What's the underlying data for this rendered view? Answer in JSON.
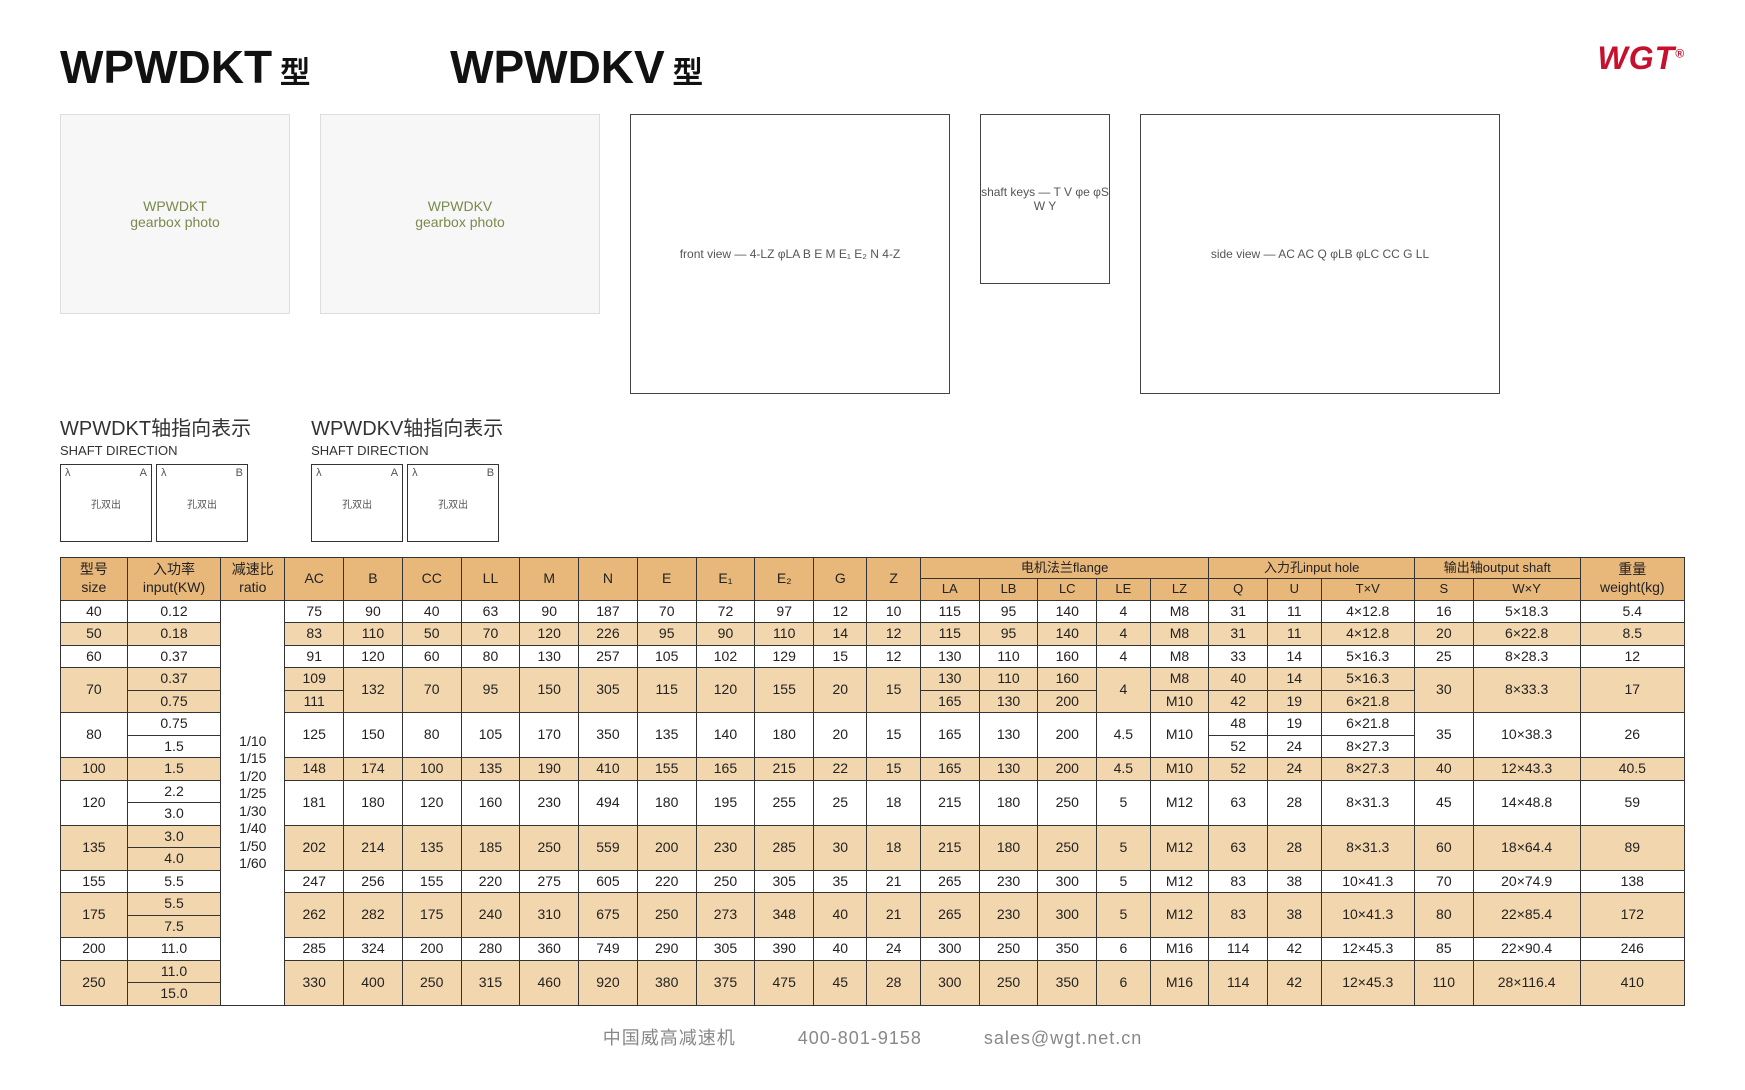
{
  "logo": "WGT",
  "logo_mark": "®",
  "titles": {
    "t1": "WPWDKT",
    "t1_suffix": "型",
    "t2": "WPWDKV",
    "t2_suffix": "型"
  },
  "shaft": {
    "label1": "WPWDKT轴指向表示",
    "sub1": "SHAFT DIRECTION",
    "label2": "WPWDKV轴指向表示",
    "sub2": "SHAFT DIRECTION",
    "A": "A",
    "B": "B",
    "lambda": "λ",
    "hole": "孔双出"
  },
  "diagram_labels": {
    "d1": "front view — 4-LZ φLA B E M E₁ E₂ N 4-Z",
    "d2": "shaft keys — T V φe φS W Y",
    "d3": "side view — AC AC Q φLB φLC CC G LL"
  },
  "table": {
    "head": {
      "size": "型号",
      "size_en": "size",
      "input": "入功率",
      "input_en": "input(KW)",
      "ratio": "减速比",
      "ratio_en": "ratio",
      "AC": "AC",
      "B": "B",
      "CC": "CC",
      "LL": "LL",
      "M": "M",
      "N": "N",
      "E": "E",
      "E1": "E₁",
      "E2": "E₂",
      "G": "G",
      "Z": "Z",
      "flange": "电机法兰flange",
      "LA": "LA",
      "LB": "LB",
      "LC": "LC",
      "LE": "LE",
      "LZ": "LZ",
      "inputhole": "入力孔input hole",
      "Q": "Q",
      "U": "U",
      "TxV": "T×V",
      "outputshaft": "输出轴output shaft",
      "S": "S",
      "WxY": "W×Y",
      "weight": "重量",
      "weight_en": "weight(kg)"
    },
    "ratios": "1/10\n1/15\n1/20\n1/25\n1/30\n1/40\n1/50\n1/60",
    "rows": [
      {
        "size": "40",
        "input": [
          "0.12"
        ],
        "AC": [
          "75"
        ],
        "B": "90",
        "CC": "40",
        "LL": "63",
        "M": "90",
        "N": "187",
        "E": "70",
        "E1": "72",
        "E2": "97",
        "G": "12",
        "Z": "10",
        "LA": [
          "115"
        ],
        "LB": [
          "95"
        ],
        "LC": [
          "140"
        ],
        "LE": "4",
        "LZ": [
          "M8"
        ],
        "Q": [
          "31"
        ],
        "U": [
          "11"
        ],
        "TxV": [
          "4×12.8"
        ],
        "S": "16",
        "WxY": "5×18.3",
        "wt": "5.4"
      },
      {
        "size": "50",
        "input": [
          "0.18"
        ],
        "AC": [
          "83"
        ],
        "B": "110",
        "CC": "50",
        "LL": "70",
        "M": "120",
        "N": "226",
        "E": "95",
        "E1": "90",
        "E2": "110",
        "G": "14",
        "Z": "12",
        "LA": [
          "115"
        ],
        "LB": [
          "95"
        ],
        "LC": [
          "140"
        ],
        "LE": "4",
        "LZ": [
          "M8"
        ],
        "Q": [
          "31"
        ],
        "U": [
          "11"
        ],
        "TxV": [
          "4×12.8"
        ],
        "S": "20",
        "WxY": "6×22.8",
        "wt": "8.5"
      },
      {
        "size": "60",
        "input": [
          "0.37"
        ],
        "AC": [
          "91"
        ],
        "B": "120",
        "CC": "60",
        "LL": "80",
        "M": "130",
        "N": "257",
        "E": "105",
        "E1": "102",
        "E2": "129",
        "G": "15",
        "Z": "12",
        "LA": [
          "130"
        ],
        "LB": [
          "110"
        ],
        "LC": [
          "160"
        ],
        "LE": "4",
        "LZ": [
          "M8"
        ],
        "Q": [
          "33"
        ],
        "U": [
          "14"
        ],
        "TxV": [
          "5×16.3"
        ],
        "S": "25",
        "WxY": "8×28.3",
        "wt": "12"
      },
      {
        "size": "70",
        "input": [
          "0.37",
          "0.75"
        ],
        "AC": [
          "109",
          "111"
        ],
        "B": "132",
        "CC": "70",
        "LL": "95",
        "M": "150",
        "N": "305",
        "E": "115",
        "E1": "120",
        "E2": "155",
        "G": "20",
        "Z": "15",
        "LA": [
          "130",
          "165"
        ],
        "LB": [
          "110",
          "130"
        ],
        "LC": [
          "160",
          "200"
        ],
        "LE": "4",
        "LZ": [
          "M8",
          "M10"
        ],
        "Q": [
          "40",
          "42"
        ],
        "U": [
          "14",
          "19"
        ],
        "TxV": [
          "5×16.3",
          "6×21.8"
        ],
        "S": "30",
        "WxY": "8×33.3",
        "wt": "17"
      },
      {
        "size": "80",
        "input": [
          "0.75",
          "1.5"
        ],
        "AC": [
          "125"
        ],
        "B": "150",
        "CC": "80",
        "LL": "105",
        "M": "170",
        "N": "350",
        "E": "135",
        "E1": "140",
        "E2": "180",
        "G": "20",
        "Z": "15",
        "LA": [
          "165"
        ],
        "LB": [
          "130"
        ],
        "LC": [
          "200"
        ],
        "LE": "4.5",
        "LZ": [
          "M10"
        ],
        "Q": [
          "48",
          "52"
        ],
        "U": [
          "19",
          "24"
        ],
        "TxV": [
          "6×21.8",
          "8×27.3"
        ],
        "S": "35",
        "WxY": "10×38.3",
        "wt": "26"
      },
      {
        "size": "100",
        "input": [
          "1.5"
        ],
        "AC": [
          "148"
        ],
        "B": "174",
        "CC": "100",
        "LL": "135",
        "M": "190",
        "N": "410",
        "E": "155",
        "E1": "165",
        "E2": "215",
        "G": "22",
        "Z": "15",
        "LA": [
          "165"
        ],
        "LB": [
          "130"
        ],
        "LC": [
          "200"
        ],
        "LE": "4.5",
        "LZ": [
          "M10"
        ],
        "Q": [
          "52"
        ],
        "U": [
          "24"
        ],
        "TxV": [
          "8×27.3"
        ],
        "S": "40",
        "WxY": "12×43.3",
        "wt": "40.5"
      },
      {
        "size": "120",
        "input": [
          "2.2",
          "3.0"
        ],
        "AC": [
          "181"
        ],
        "B": "180",
        "CC": "120",
        "LL": "160",
        "M": "230",
        "N": "494",
        "E": "180",
        "E1": "195",
        "E2": "255",
        "G": "25",
        "Z": "18",
        "LA": [
          "215"
        ],
        "LB": [
          "180"
        ],
        "LC": [
          "250"
        ],
        "LE": "5",
        "LZ": [
          "M12"
        ],
        "Q": [
          "63"
        ],
        "U": [
          "28"
        ],
        "TxV": [
          "8×31.3"
        ],
        "S": "45",
        "WxY": "14×48.8",
        "wt": "59"
      },
      {
        "size": "135",
        "input": [
          "3.0",
          "4.0"
        ],
        "AC": [
          "202"
        ],
        "B": "214",
        "CC": "135",
        "LL": "185",
        "M": "250",
        "N": "559",
        "E": "200",
        "E1": "230",
        "E2": "285",
        "G": "30",
        "Z": "18",
        "LA": [
          "215"
        ],
        "LB": [
          "180"
        ],
        "LC": [
          "250"
        ],
        "LE": "5",
        "LZ": [
          "M12"
        ],
        "Q": [
          "63"
        ],
        "U": [
          "28"
        ],
        "TxV": [
          "8×31.3"
        ],
        "S": "60",
        "WxY": "18×64.4",
        "wt": "89"
      },
      {
        "size": "155",
        "input": [
          "5.5"
        ],
        "AC": [
          "247"
        ],
        "B": "256",
        "CC": "155",
        "LL": "220",
        "M": "275",
        "N": "605",
        "E": "220",
        "E1": "250",
        "E2": "305",
        "G": "35",
        "Z": "21",
        "LA": [
          "265"
        ],
        "LB": [
          "230"
        ],
        "LC": [
          "300"
        ],
        "LE": "5",
        "LZ": [
          "M12"
        ],
        "Q": [
          "83"
        ],
        "U": [
          "38"
        ],
        "TxV": [
          "10×41.3"
        ],
        "S": "70",
        "WxY": "20×74.9",
        "wt": "138"
      },
      {
        "size": "175",
        "input": [
          "5.5",
          "7.5"
        ],
        "AC": [
          "262"
        ],
        "B": "282",
        "CC": "175",
        "LL": "240",
        "M": "310",
        "N": "675",
        "E": "250",
        "E1": "273",
        "E2": "348",
        "G": "40",
        "Z": "21",
        "LA": [
          "265"
        ],
        "LB": [
          "230"
        ],
        "LC": [
          "300"
        ],
        "LE": "5",
        "LZ": [
          "M12"
        ],
        "Q": [
          "83"
        ],
        "U": [
          "38"
        ],
        "TxV": [
          "10×41.3"
        ],
        "S": "80",
        "WxY": "22×85.4",
        "wt": "172"
      },
      {
        "size": "200",
        "input": [
          "11.0"
        ],
        "AC": [
          "285"
        ],
        "B": "324",
        "CC": "200",
        "LL": "280",
        "M": "360",
        "N": "749",
        "E": "290",
        "E1": "305",
        "E2": "390",
        "G": "40",
        "Z": "24",
        "LA": [
          "300"
        ],
        "LB": [
          "250"
        ],
        "LC": [
          "350"
        ],
        "LE": "6",
        "LZ": [
          "M16"
        ],
        "Q": [
          "114"
        ],
        "U": [
          "42"
        ],
        "TxV": [
          "12×45.3"
        ],
        "S": "85",
        "WxY": "22×90.4",
        "wt": "246"
      },
      {
        "size": "250",
        "input": [
          "11.0",
          "15.0"
        ],
        "AC": [
          "330"
        ],
        "B": "400",
        "CC": "250",
        "LL": "315",
        "M": "460",
        "N": "920",
        "E": "380",
        "E1": "375",
        "E2": "475",
        "G": "45",
        "Z": "28",
        "LA": [
          "300"
        ],
        "LB": [
          "250"
        ],
        "LC": [
          "350"
        ],
        "LE": "6",
        "LZ": [
          "M16"
        ],
        "Q": [
          "114"
        ],
        "U": [
          "42"
        ],
        "TxV": [
          "12×45.3"
        ],
        "S": "110",
        "WxY": "28×116.4",
        "wt": "410"
      }
    ]
  },
  "footer": {
    "company": "中国威高减速机",
    "phone": "400-801-9158",
    "email": "sales@wgt.net.cn"
  }
}
